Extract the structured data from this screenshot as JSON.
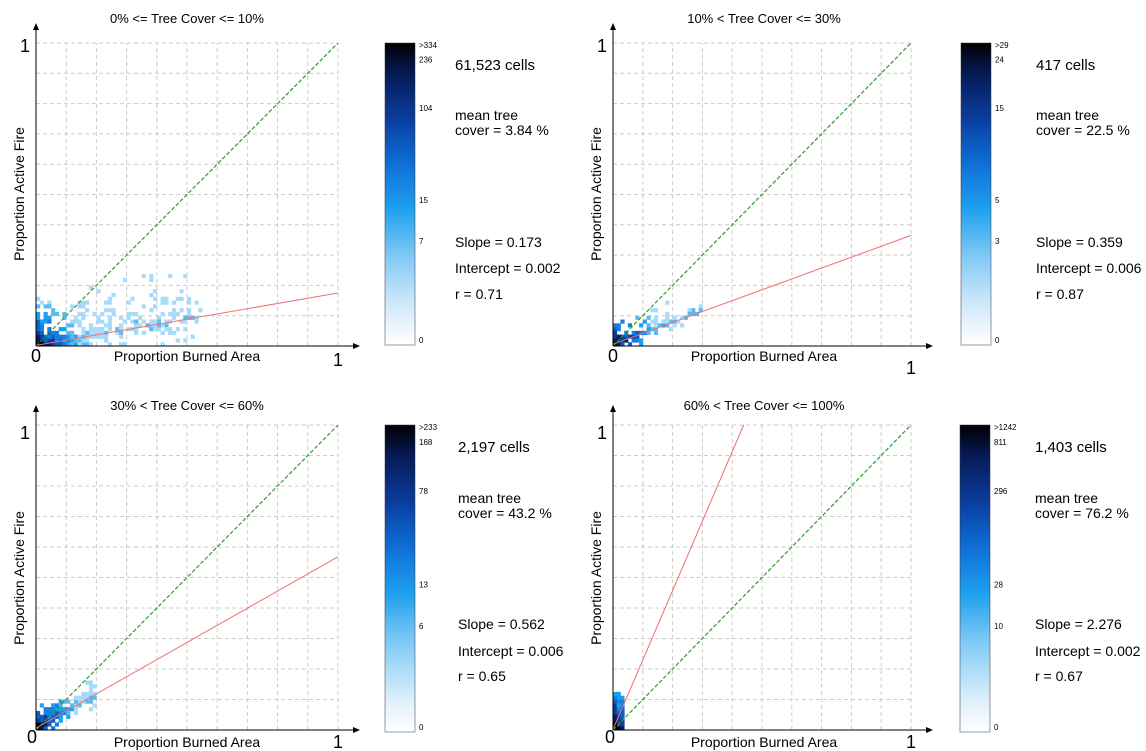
{
  "chart_data": [
    {
      "type": "heatmap",
      "title": "0% <= Tree Cover <= 10%",
      "xlabel": "Proportion Burned Area",
      "ylabel": "Proportion Active Fire",
      "xlim": [
        0,
        1
      ],
      "ylim": [
        0,
        1
      ],
      "x_tick_labels": [
        "0",
        "1"
      ],
      "y_tick_labels": [
        "1"
      ],
      "grid": true,
      "cells_text": "61,523 cells",
      "mean_text_1": "mean tree",
      "mean_text_2": "cover = 3.84 %",
      "slope_text": "Slope = 0.173",
      "intercept_text": "Intercept = 0.002",
      "r_text": "r = 0.71",
      "slope": 0.173,
      "intercept": 0.002,
      "r": 0.71,
      "cells": 61523,
      "mean_tree_cover": 3.84,
      "colorbar_labels": [
        ">334",
        "236",
        "104",
        "15",
        "7",
        "0"
      ],
      "colorbar_positions": [
        0,
        0.055,
        0.215,
        0.52,
        0.655,
        1
      ],
      "spread_x": 0.55,
      "spread_y": 0.28,
      "density": 1
    },
    {
      "type": "heatmap",
      "title": "10% < Tree Cover <= 30%",
      "xlabel": "Proportion Burned Area",
      "ylabel": "Proportion Active Fire",
      "xlim": [
        0,
        1
      ],
      "ylim": [
        0,
        1
      ],
      "x_tick_labels": [
        "0",
        "1"
      ],
      "y_tick_labels": [
        "1"
      ],
      "grid": true,
      "cells_text": "417 cells",
      "mean_text_1": "mean tree",
      "mean_text_2": "cover = 22.5 %",
      "slope_text": "Slope = 0.359",
      "intercept_text": "Intercept = 0.006",
      "r_text": "r = 0.87",
      "slope": 0.359,
      "intercept": 0.006,
      "r": 0.87,
      "cells": 417,
      "mean_tree_cover": 22.5,
      "colorbar_labels": [
        ">29",
        "24",
        "15",
        "5",
        "3",
        "0"
      ],
      "colorbar_positions": [
        0,
        0.055,
        0.215,
        0.52,
        0.655,
        1
      ],
      "spread_x": 0.3,
      "spread_y": 0.12,
      "density": 0.25
    },
    {
      "type": "heatmap",
      "title": "30% < Tree Cover <= 60%",
      "xlabel": "Proportion Burned Area",
      "ylabel": "Proportion Active Fire",
      "xlim": [
        0,
        1
      ],
      "ylim": [
        0,
        1
      ],
      "x_tick_labels": [
        "0",
        "1"
      ],
      "y_tick_labels": [
        "1"
      ],
      "grid": true,
      "cells_text": "2,197 cells",
      "mean_text_1": "mean tree",
      "mean_text_2": "cover = 43.2 %",
      "slope_text": "Slope = 0.562",
      "intercept_text": "Intercept = 0.006",
      "r_text": "r = 0.65",
      "slope": 0.562,
      "intercept": 0.006,
      "r": 0.65,
      "cells": 2197,
      "mean_tree_cover": 43.2,
      "colorbar_labels": [
        ">233",
        "168",
        "78",
        "13",
        "6",
        "0"
      ],
      "colorbar_positions": [
        0,
        0.055,
        0.215,
        0.52,
        0.655,
        1
      ],
      "spread_x": 0.2,
      "spread_y": 0.12,
      "density": 0.45
    },
    {
      "type": "heatmap",
      "title": "60% < Tree Cover <= 100%",
      "xlabel": "Proportion Burned Area",
      "ylabel": "Proportion Active Fire",
      "xlim": [
        0,
        1
      ],
      "ylim": [
        0,
        1
      ],
      "x_tick_labels": [
        "0",
        "1"
      ],
      "y_tick_labels": [
        "1"
      ],
      "grid": true,
      "cells_text": "1,403 cells",
      "mean_text_1": "mean tree",
      "mean_text_2": "cover = 76.2 %",
      "slope_text": "Slope = 2.276",
      "intercept_text": "Intercept = 0.002",
      "r_text": "r = 0.67",
      "slope": 2.276,
      "intercept": 0.002,
      "r": 0.67,
      "cells": 1403,
      "mean_tree_cover": 76.2,
      "colorbar_labels": [
        ">1242",
        "811",
        "296",
        "28",
        "10",
        "0"
      ],
      "colorbar_positions": [
        0,
        0.055,
        0.215,
        0.52,
        0.655,
        1
      ],
      "spread_x": 0.035,
      "spread_y": 0.12,
      "density": 0.35
    }
  ],
  "colors": {
    "one_to_one_line": "#2e9b2e",
    "regression_line": "#f07070",
    "grid": "#cccccc",
    "colorbar_stops": [
      "#ffffff",
      "#d6ecfb",
      "#7cc8f5",
      "#1ea0ee",
      "#0f6fd6",
      "#0a3d9e",
      "#061a55",
      "#000000"
    ]
  }
}
